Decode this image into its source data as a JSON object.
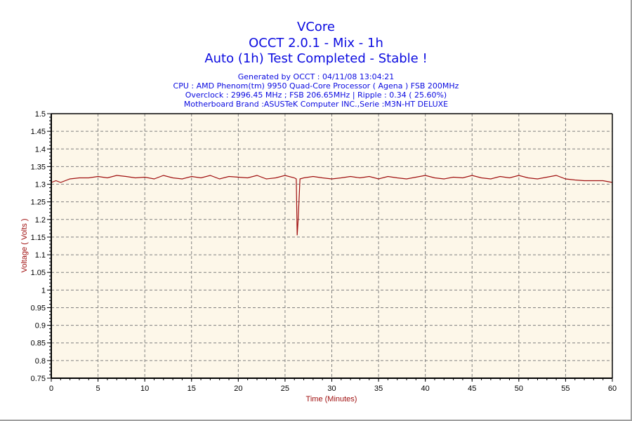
{
  "header": {
    "title": "VCore",
    "subtitle": "OCCT 2.0.1 - Mix - 1h",
    "status": "Auto (1h) Test Completed - Stable !",
    "info": [
      "Generated by OCCT : 04/11/08 13:04:21",
      "CPU : AMD Phenom(tm) 9950 Quad-Core Processor ( Agena ) FSB 200MHz",
      "Overclock : 2996.45 MHz ; FSB 206.65MHz | Ripple : 0.34 ( 25.60%)",
      "Motherboard Brand :ASUSTeK Computer INC.,Serie :M3N-HT DELUXE"
    ]
  },
  "colors": {
    "title": "#0a0ae0",
    "line": "#a01010",
    "plot_bg": "#fdf7e9",
    "grid": "#808080"
  },
  "chart_data": {
    "type": "line",
    "title": "VCore",
    "xlabel": "Time (Minutes)",
    "ylabel": "Voltage ( Volts )",
    "xlim": [
      0,
      60
    ],
    "ylim": [
      0.75,
      1.5
    ],
    "x_ticks": [
      "0",
      "5",
      "10",
      "15",
      "20",
      "25",
      "30",
      "35",
      "40",
      "45",
      "50",
      "55",
      "60"
    ],
    "y_ticks": [
      "1.5",
      "1.45",
      "1.4",
      "1.35",
      "1.3",
      "1.25",
      "1.2",
      "1.15",
      "1.1",
      "1.05",
      "1",
      "0.95",
      "0.9",
      "0.85",
      "0.8",
      "0.75"
    ],
    "grid": true,
    "legend": null,
    "series": [
      {
        "name": "VCore",
        "x": [
          0,
          0.5,
          1,
          2,
          3,
          4,
          5,
          6,
          7,
          8,
          9,
          10,
          11,
          12,
          13,
          14,
          15,
          16,
          17,
          18,
          19,
          20,
          21,
          22,
          23,
          24,
          25,
          26,
          26.2,
          26.3,
          26.4,
          26.6,
          27,
          28,
          29,
          30,
          31,
          32,
          33,
          34,
          35,
          36,
          37,
          38,
          39,
          40,
          41,
          42,
          43,
          44,
          45,
          46,
          47,
          48,
          49,
          50,
          51,
          52,
          53,
          54,
          55,
          56,
          57,
          58,
          59,
          60
        ],
        "values": [
          1.305,
          1.31,
          1.305,
          1.315,
          1.318,
          1.318,
          1.322,
          1.318,
          1.325,
          1.322,
          1.318,
          1.32,
          1.315,
          1.325,
          1.318,
          1.315,
          1.322,
          1.318,
          1.325,
          1.315,
          1.322,
          1.32,
          1.318,
          1.325,
          1.315,
          1.318,
          1.325,
          1.318,
          1.315,
          1.155,
          1.2,
          1.315,
          1.318,
          1.322,
          1.318,
          1.315,
          1.318,
          1.322,
          1.318,
          1.322,
          1.315,
          1.322,
          1.318,
          1.315,
          1.32,
          1.325,
          1.318,
          1.315,
          1.32,
          1.318,
          1.325,
          1.318,
          1.315,
          1.322,
          1.318,
          1.325,
          1.318,
          1.315,
          1.32,
          1.325,
          1.315,
          1.312,
          1.31,
          1.31,
          1.31,
          1.305
        ]
      }
    ]
  }
}
